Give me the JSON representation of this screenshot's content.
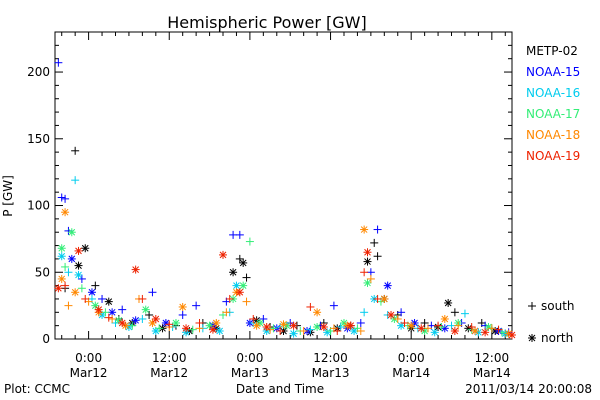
{
  "chart_data": {
    "type": "scatter",
    "title": "Hemispheric Power [GW]",
    "xlabel": "Date and Time",
    "ylabel": "P [GW]",
    "ylim": [
      0,
      230
    ],
    "xlim": [
      -5,
      63
    ],
    "x_unit": "hours from 2011-03-12 00:00 UT",
    "yticks": [
      0,
      50,
      100,
      150,
      200
    ],
    "xticks": [
      {
        "x": 0,
        "line1": "0:00",
        "line2": "Mar12"
      },
      {
        "x": 12,
        "line1": "12:00",
        "line2": "Mar12"
      },
      {
        "x": 24,
        "line1": "0:00",
        "line2": "Mar13"
      },
      {
        "x": 36,
        "line1": "12:00",
        "line2": "Mar13"
      },
      {
        "x": 48,
        "line1": "0:00",
        "line2": "Mar14"
      },
      {
        "x": 60,
        "line1": "12:00",
        "line2": "Mar14"
      }
    ],
    "legend_position": "right",
    "markers": [
      {
        "symbol": "+",
        "label": "south"
      },
      {
        "symbol": "*",
        "label": "north"
      }
    ],
    "series": [
      {
        "name": "METP-02",
        "color": "#000000",
        "points": [
          [
            -3.5,
            38,
            "+"
          ],
          [
            -2.0,
            141,
            "+"
          ],
          [
            -1.5,
            55,
            "*"
          ],
          [
            -0.5,
            68,
            "*"
          ],
          [
            1.0,
            40,
            "+"
          ],
          [
            3.0,
            28,
            "*"
          ],
          [
            4.5,
            15,
            "+"
          ],
          [
            6.5,
            12,
            "*"
          ],
          [
            9.0,
            18,
            "+"
          ],
          [
            11.0,
            8,
            "*"
          ],
          [
            13.0,
            10,
            "+"
          ],
          [
            15.0,
            6,
            "*"
          ],
          [
            17.0,
            12,
            "+"
          ],
          [
            19.0,
            8,
            "*"
          ],
          [
            21.5,
            50,
            "*"
          ],
          [
            22.5,
            60,
            "+"
          ],
          [
            23.0,
            57,
            "*"
          ],
          [
            23.5,
            46,
            "+"
          ],
          [
            25.0,
            14,
            "*"
          ],
          [
            27.0,
            9,
            "+"
          ],
          [
            29.0,
            6,
            "*"
          ],
          [
            31.0,
            10,
            "+"
          ],
          [
            33.0,
            5,
            "*"
          ],
          [
            35.0,
            12,
            "+"
          ],
          [
            37.0,
            8,
            "*"
          ],
          [
            39.0,
            10,
            "+"
          ],
          [
            41.5,
            58,
            "*"
          ],
          [
            42.5,
            72,
            "+"
          ],
          [
            43.0,
            62,
            "+"
          ],
          [
            44.0,
            30,
            "*"
          ],
          [
            46.0,
            18,
            "+"
          ],
          [
            48.0,
            8,
            "*"
          ],
          [
            50.0,
            12,
            "+"
          ],
          [
            52.0,
            9,
            "*"
          ],
          [
            53.5,
            27,
            "*"
          ],
          [
            54.5,
            20,
            "+"
          ],
          [
            56.5,
            8,
            "*"
          ],
          [
            58.5,
            12,
            "+"
          ],
          [
            60.5,
            6,
            "*"
          ],
          [
            62.0,
            4,
            "+"
          ]
        ]
      },
      {
        "name": "NOAA-15",
        "color": "#0000ff",
        "points": [
          [
            -4.5,
            207,
            "+"
          ],
          [
            -4.0,
            106,
            "+"
          ],
          [
            -3.5,
            105,
            "+"
          ],
          [
            -3.0,
            81,
            "+"
          ],
          [
            -2.5,
            60,
            "*"
          ],
          [
            -1.0,
            45,
            "+"
          ],
          [
            0.5,
            35,
            "*"
          ],
          [
            2.0,
            30,
            "+"
          ],
          [
            3.5,
            20,
            "*"
          ],
          [
            5.0,
            22,
            "+"
          ],
          [
            7.0,
            14,
            "*"
          ],
          [
            9.5,
            35,
            "+"
          ],
          [
            11.5,
            12,
            "*"
          ],
          [
            14.0,
            18,
            "+"
          ],
          [
            16.0,
            25,
            "+"
          ],
          [
            18.5,
            10,
            "*"
          ],
          [
            20.5,
            28,
            "+"
          ],
          [
            21.5,
            78,
            "+"
          ],
          [
            22.5,
            78,
            "+"
          ],
          [
            24.0,
            12,
            "*"
          ],
          [
            26.0,
            15,
            "+"
          ],
          [
            28.0,
            8,
            "*"
          ],
          [
            30.0,
            12,
            "+"
          ],
          [
            32.5,
            6,
            "*"
          ],
          [
            34.5,
            10,
            "+"
          ],
          [
            36.5,
            25,
            "+"
          ],
          [
            38.5,
            8,
            "*"
          ],
          [
            40.5,
            12,
            "+"
          ],
          [
            42.0,
            50,
            "+"
          ],
          [
            43.0,
            82,
            "+"
          ],
          [
            44.5,
            40,
            "*"
          ],
          [
            46.5,
            20,
            "+"
          ],
          [
            48.5,
            12,
            "*"
          ],
          [
            51.0,
            10,
            "+"
          ],
          [
            53.0,
            8,
            "*"
          ],
          [
            55.5,
            12,
            "+"
          ],
          [
            57.5,
            6,
            "*"
          ],
          [
            59.0,
            10,
            "+"
          ],
          [
            61.0,
            6,
            "*"
          ],
          [
            62.5,
            5,
            "+"
          ]
        ]
      },
      {
        "name": "NOAA-16",
        "color": "#00ccee",
        "points": [
          [
            -4.0,
            62,
            "*"
          ],
          [
            -3.0,
            50,
            "+"
          ],
          [
            -2.0,
            119,
            "+"
          ],
          [
            -1.5,
            48,
            "*"
          ],
          [
            0.5,
            30,
            "+"
          ],
          [
            2.0,
            18,
            "*"
          ],
          [
            4.0,
            12,
            "+"
          ],
          [
            6.0,
            9,
            "*"
          ],
          [
            8.0,
            15,
            "+"
          ],
          [
            10.0,
            6,
            "*"
          ],
          [
            12.5,
            9,
            "+"
          ],
          [
            14.5,
            5,
            "*"
          ],
          [
            17.0,
            8,
            "+"
          ],
          [
            19.5,
            6,
            "*"
          ],
          [
            21.0,
            20,
            "+"
          ],
          [
            22.0,
            40,
            "*"
          ],
          [
            24.5,
            12,
            "+"
          ],
          [
            26.5,
            6,
            "*"
          ],
          [
            28.5,
            9,
            "+"
          ],
          [
            30.5,
            4,
            "*"
          ],
          [
            33.0,
            7,
            "+"
          ],
          [
            35.5,
            5,
            "*"
          ],
          [
            37.5,
            9,
            "+"
          ],
          [
            39.5,
            6,
            "*"
          ],
          [
            41.0,
            20,
            "+"
          ],
          [
            42.5,
            30,
            "*"
          ],
          [
            44.5,
            18,
            "+"
          ],
          [
            46.5,
            10,
            "*"
          ],
          [
            49.0,
            8,
            "+"
          ],
          [
            51.5,
            5,
            "*"
          ],
          [
            54.0,
            10,
            "+"
          ],
          [
            56.0,
            19,
            "+"
          ],
          [
            58.0,
            5,
            "*"
          ],
          [
            60.0,
            8,
            "+"
          ],
          [
            62.0,
            4,
            "*"
          ]
        ]
      },
      {
        "name": "NOAA-17",
        "color": "#33ee77",
        "points": [
          [
            -4.0,
            68,
            "*"
          ],
          [
            -3.5,
            54,
            "+"
          ],
          [
            -2.5,
            80,
            "*"
          ],
          [
            -1.0,
            38,
            "+"
          ],
          [
            1.0,
            25,
            "*"
          ],
          [
            2.5,
            20,
            "+"
          ],
          [
            4.5,
            14,
            "*"
          ],
          [
            6.5,
            10,
            "+"
          ],
          [
            8.5,
            22,
            "*"
          ],
          [
            10.5,
            8,
            "+"
          ],
          [
            13.0,
            12,
            "*"
          ],
          [
            15.5,
            7,
            "+"
          ],
          [
            18.0,
            10,
            "*"
          ],
          [
            20.0,
            18,
            "+"
          ],
          [
            21.5,
            30,
            "*"
          ],
          [
            23.0,
            40,
            "*"
          ],
          [
            24.0,
            73,
            "+"
          ],
          [
            25.5,
            12,
            "*"
          ],
          [
            27.5,
            8,
            "+"
          ],
          [
            29.5,
            10,
            "*"
          ],
          [
            31.5,
            6,
            "+"
          ],
          [
            34.0,
            9,
            "*"
          ],
          [
            36.0,
            6,
            "+"
          ],
          [
            38.0,
            12,
            "*"
          ],
          [
            40.0,
            8,
            "+"
          ],
          [
            41.5,
            42,
            "*"
          ],
          [
            43.5,
            28,
            "+"
          ],
          [
            45.5,
            15,
            "*"
          ],
          [
            47.5,
            10,
            "+"
          ],
          [
            50.0,
            6,
            "*"
          ],
          [
            52.5,
            9,
            "+"
          ],
          [
            55.0,
            12,
            "*"
          ],
          [
            57.0,
            7,
            "+"
          ],
          [
            59.5,
            9,
            "*"
          ],
          [
            61.5,
            5,
            "+"
          ]
        ]
      },
      {
        "name": "NOAA-18",
        "color": "#ff8800",
        "points": [
          [
            -4.0,
            45,
            "*"
          ],
          [
            -3.5,
            95,
            "*"
          ],
          [
            -3.0,
            25,
            "+"
          ],
          [
            -2.0,
            35,
            "*"
          ],
          [
            0.0,
            28,
            "+"
          ],
          [
            1.5,
            20,
            "*"
          ],
          [
            3.5,
            15,
            "+"
          ],
          [
            5.5,
            10,
            "*"
          ],
          [
            7.5,
            30,
            "+"
          ],
          [
            9.5,
            12,
            "*"
          ],
          [
            12.0,
            9,
            "+"
          ],
          [
            14.0,
            24,
            "*"
          ],
          [
            16.5,
            8,
            "+"
          ],
          [
            19.0,
            12,
            "*"
          ],
          [
            20.5,
            20,
            "+"
          ],
          [
            22.0,
            35,
            "*"
          ],
          [
            23.5,
            28,
            "+"
          ],
          [
            25.0,
            10,
            "*"
          ],
          [
            27.0,
            7,
            "+"
          ],
          [
            29.0,
            11,
            "*"
          ],
          [
            32.0,
            6,
            "+"
          ],
          [
            34.0,
            20,
            "*"
          ],
          [
            36.5,
            8,
            "+"
          ],
          [
            38.5,
            10,
            "*"
          ],
          [
            40.5,
            6,
            "+"
          ],
          [
            41.0,
            82,
            "*"
          ],
          [
            42.0,
            45,
            "+"
          ],
          [
            44.0,
            30,
            "*"
          ],
          [
            46.0,
            15,
            "+"
          ],
          [
            48.0,
            10,
            "*"
          ],
          [
            50.5,
            8,
            "+"
          ],
          [
            53.0,
            15,
            "*"
          ],
          [
            55.0,
            10,
            "+"
          ],
          [
            57.5,
            6,
            "*"
          ],
          [
            60.0,
            8,
            "+"
          ],
          [
            62.5,
            4,
            "*"
          ]
        ]
      },
      {
        "name": "NOAA-19",
        "color": "#ee2200",
        "points": [
          [
            -4.5,
            38,
            "*"
          ],
          [
            -3.5,
            40,
            "+"
          ],
          [
            -1.5,
            66,
            "*"
          ],
          [
            -0.5,
            30,
            "+"
          ],
          [
            1.5,
            22,
            "*"
          ],
          [
            3.0,
            16,
            "+"
          ],
          [
            5.0,
            12,
            "*"
          ],
          [
            7.0,
            52,
            "*"
          ],
          [
            8.0,
            30,
            "+"
          ],
          [
            10.0,
            15,
            "*"
          ],
          [
            12.0,
            11,
            "+"
          ],
          [
            14.5,
            8,
            "*"
          ],
          [
            16.5,
            12,
            "+"
          ],
          [
            18.5,
            7,
            "*"
          ],
          [
            20.0,
            63,
            "*"
          ],
          [
            21.0,
            30,
            "+"
          ],
          [
            22.5,
            35,
            "*"
          ],
          [
            24.5,
            15,
            "+"
          ],
          [
            26.5,
            9,
            "*"
          ],
          [
            28.5,
            6,
            "+"
          ],
          [
            30.5,
            10,
            "*"
          ],
          [
            33.0,
            24,
            "+"
          ],
          [
            35.0,
            9,
            "*"
          ],
          [
            37.0,
            6,
            "+"
          ],
          [
            39.0,
            10,
            "*"
          ],
          [
            41.0,
            50,
            "+"
          ],
          [
            41.5,
            65,
            "*"
          ],
          [
            43.0,
            30,
            "+"
          ],
          [
            45.0,
            18,
            "*"
          ],
          [
            47.0,
            12,
            "+"
          ],
          [
            49.5,
            8,
            "*"
          ],
          [
            52.0,
            10,
            "+"
          ],
          [
            54.5,
            6,
            "*"
          ],
          [
            57.0,
            9,
            "+"
          ],
          [
            59.0,
            5,
            "*"
          ],
          [
            61.0,
            7,
            "+"
          ],
          [
            63.0,
            3,
            "*"
          ]
        ]
      }
    ]
  },
  "footer": {
    "plot_credit": "Plot: CCMC",
    "timestamp": "2011/03/14 20:00:08"
  }
}
